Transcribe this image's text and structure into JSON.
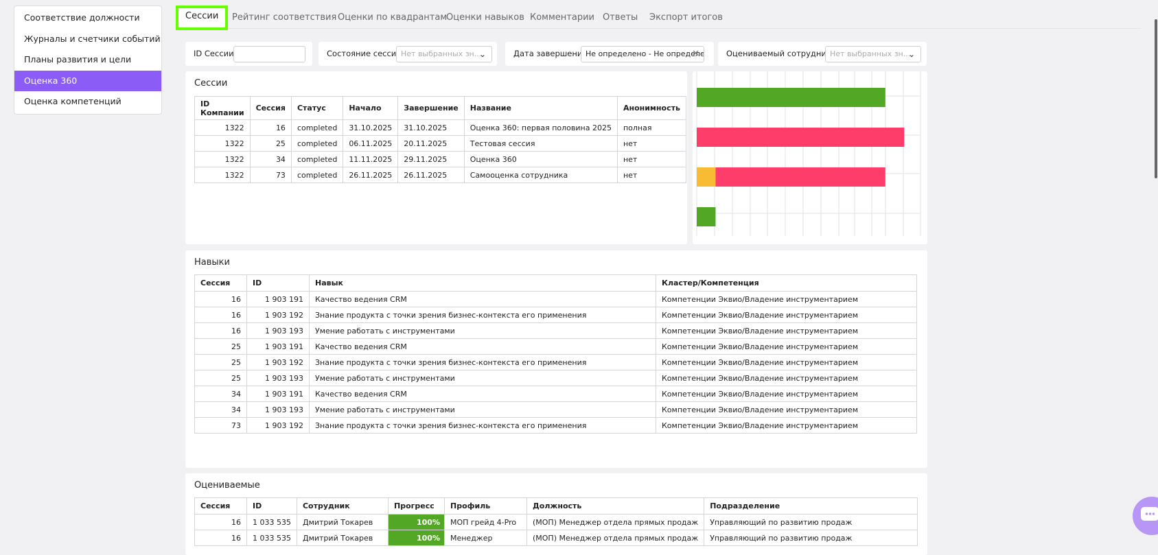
{
  "sidebar": {
    "items": [
      {
        "label": "Соответствие должности"
      },
      {
        "label": "Журналы и счетчики событий"
      },
      {
        "label": "Планы развития и цели"
      },
      {
        "label": "Оценка 360"
      },
      {
        "label": "Оценка компетенций"
      }
    ],
    "active_index": 3
  },
  "tabs": [
    {
      "label": "Сессии"
    },
    {
      "label": "Рейтинг соответствия"
    },
    {
      "label": "Оценки по квадрантам"
    },
    {
      "label": "Оценки навыков"
    },
    {
      "label": "Комментарии"
    },
    {
      "label": "Ответы"
    },
    {
      "label": "Экспорт итогов"
    }
  ],
  "filters": {
    "session_id": {
      "label": "ID Сессии",
      "value": ""
    },
    "session_state": {
      "label": "Состояние сессии",
      "placeholder": "Нет выбранных зн..."
    },
    "end_date": {
      "label": "Дата завершения",
      "value": "Не определено - Не определено"
    },
    "employee": {
      "label": "Оцениваемый сотрудник",
      "placeholder": "Нет выбранных зн..."
    }
  },
  "sessions": {
    "title": "Сессии",
    "columns": [
      "ID Компании",
      "Сессия",
      "Статус",
      "Начало",
      "Завершение",
      "Название",
      "Анонимность"
    ],
    "rows": [
      [
        "1322",
        "16",
        "completed",
        "31.10.2025",
        "31.10.2025",
        "Оценка 360: первая половина 2025",
        "полная"
      ],
      [
        "1322",
        "25",
        "completed",
        "06.11.2025",
        "20.11.2025",
        "Тестовая сессия",
        "нет"
      ],
      [
        "1322",
        "34",
        "completed",
        "11.11.2025",
        "29.11.2025",
        "Оценка 360",
        "нет"
      ],
      [
        "1322",
        "73",
        "completed",
        "26.11.2025",
        "26.11.2025",
        "Самооценка сотрудника",
        "нет"
      ]
    ]
  },
  "chart_data": {
    "type": "bar",
    "orientation": "horizontal",
    "stacked": true,
    "categories": [
      "",
      "",
      "",
      ""
    ],
    "series": [
      {
        "color": "#f7bc34",
        "values": [
          0,
          0,
          1,
          0
        ]
      },
      {
        "color": "#52a824",
        "values": [
          10,
          0,
          0,
          1
        ]
      },
      {
        "color": "#ff3d6a",
        "values": [
          0,
          11,
          9,
          0
        ]
      }
    ],
    "xlim": [
      0,
      14
    ],
    "grid": true,
    "legend": "none"
  },
  "skills": {
    "title": "Навыки",
    "columns": [
      "Сессия",
      "ID",
      "Навык",
      "Кластер/Компетенция"
    ],
    "rows": [
      [
        "16",
        "1 903 191",
        "Качество ведения CRM",
        "Компетенции Эквио/Владение инструментарием"
      ],
      [
        "16",
        "1 903 192",
        "Знание продукта с точки зрения бизнес-контекста его применения",
        "Компетенции Эквио/Владение инструментарием"
      ],
      [
        "16",
        "1 903 193",
        "Умение работать с инструментами",
        "Компетенции Эквио/Владение инструментарием"
      ],
      [
        "25",
        "1 903 191",
        "Качество ведения CRM",
        "Компетенции Эквио/Владение инструментарием"
      ],
      [
        "25",
        "1 903 192",
        "Знание продукта с точки зрения бизнес-контекста его применения",
        "Компетенции Эквио/Владение инструментарием"
      ],
      [
        "25",
        "1 903 193",
        "Умение работать с инструментами",
        "Компетенции Эквио/Владение инструментарием"
      ],
      [
        "34",
        "1 903 191",
        "Качество ведения CRM",
        "Компетенции Эквио/Владение инструментарием"
      ],
      [
        "34",
        "1 903 193",
        "Умение работать с инструментами",
        "Компетенции Эквио/Владение инструментарием"
      ],
      [
        "73",
        "1 903 192",
        "Знание продукта с точки зрения бизнес-контекста его применения",
        "Компетенции Эквио/Владение инструментарием"
      ]
    ]
  },
  "evaluated": {
    "title": "Оцениваемые",
    "columns": [
      "Сессия",
      "ID",
      "Сотрудник",
      "Прогресс",
      "Профиль",
      "Должность",
      "Подразделение"
    ],
    "rows": [
      [
        "16",
        "1 033 535",
        "Дмитрий Токарев",
        "100%",
        "МОП грейд 4-Pro",
        "(МОП) Менеджер отдела прямых продаж",
        "Управляющий по развитию продаж"
      ],
      [
        "16",
        "1 033 535",
        "Дмитрий Токарев",
        "100%",
        "Менеджер",
        "(МОП) Менеджер отдела прямых продаж",
        "Управляющий по развитию продаж"
      ]
    ]
  },
  "colors": {
    "accent": "#8b5cf6",
    "tab_highlight": "#66ff00",
    "progress": "#52a824"
  }
}
